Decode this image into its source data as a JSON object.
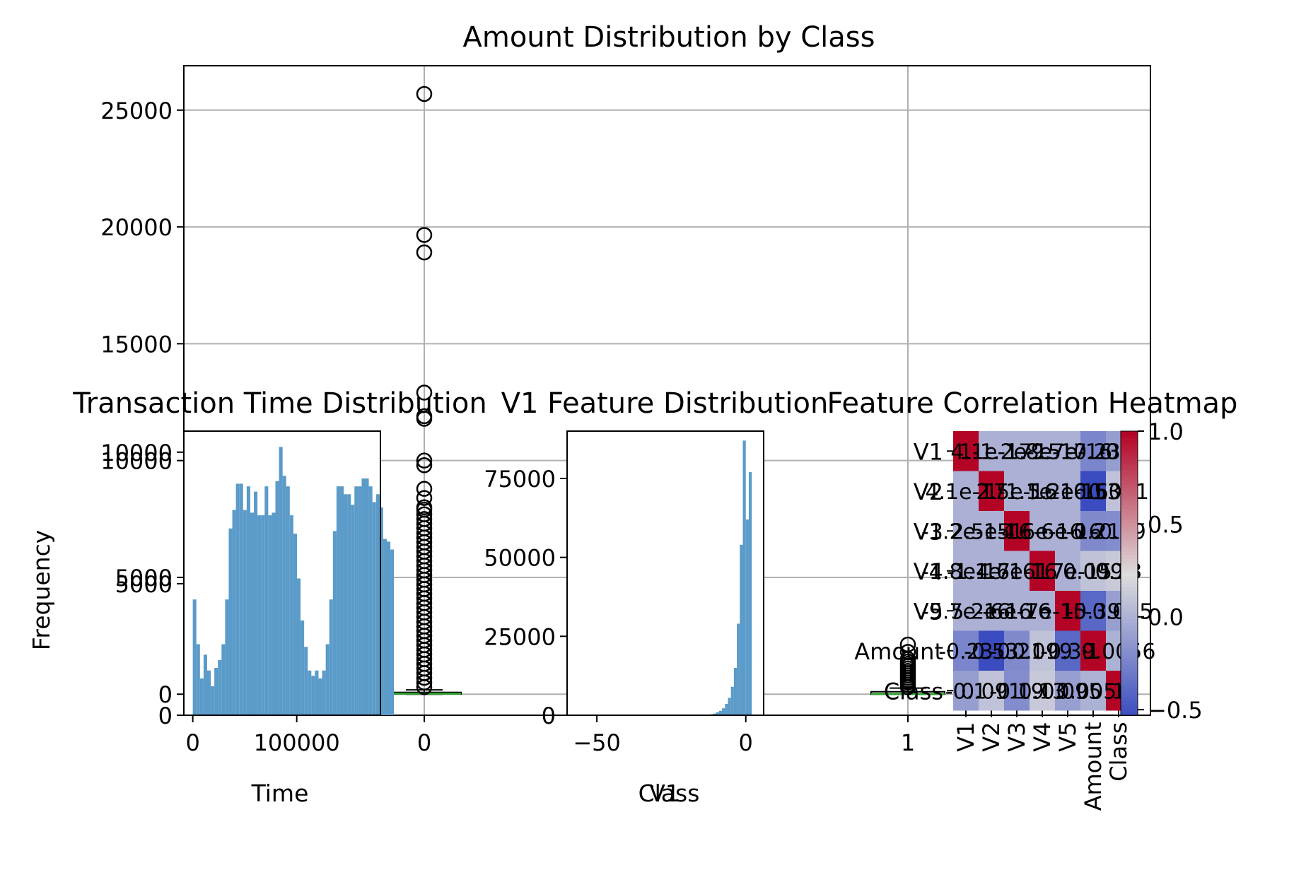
{
  "chart_data": [
    {
      "type": "box",
      "title": "Amount Distribution by Class",
      "xlabel": "Class",
      "ylabel": "",
      "categories": [
        "0",
        "1"
      ],
      "ylim": [
        -900,
        26900
      ],
      "yticks": [
        0,
        5000,
        10000,
        15000,
        20000,
        25000
      ],
      "grid": true,
      "boxes": [
        {
          "category": "0",
          "q1": 6,
          "median": 22,
          "q3": 77,
          "whisker_low": 0,
          "whisker_high": 185
        },
        {
          "category": "1",
          "q1": 1,
          "median": 9,
          "q3": 106,
          "whisker_low": 0,
          "whisker_high": 261
        }
      ],
      "outliers": [
        {
          "category": "0",
          "values": [
            25691,
            19656,
            18910,
            12910,
            11898,
            11790,
            10000,
            9800,
            8790,
            8400,
            8000,
            7900,
            7700,
            7500,
            7300,
            7100,
            6900,
            6700,
            6500,
            6300,
            6100,
            5900,
            5700,
            5500,
            5300,
            5100,
            4900,
            4700,
            4500,
            4300,
            4100,
            3900,
            3700,
            3500,
            3300,
            3100,
            2900,
            2700,
            2500,
            2300,
            2100,
            1900,
            1700,
            1500,
            1300,
            1100,
            900,
            700,
            500,
            300
          ]
        },
        {
          "category": "1",
          "values": [
            2126,
            1810,
            1500,
            1400,
            1300,
            1200,
            1100,
            1000,
            900,
            800,
            700,
            600,
            500,
            400,
            300
          ]
        }
      ]
    },
    {
      "type": "histogram",
      "title": "Transaction Time Distribution",
      "xlabel": "Time",
      "ylabel": "Frequency",
      "xticks": [
        0,
        100000
      ],
      "yticks": [
        0,
        5000,
        10000
      ],
      "xlim": [
        -8600,
        180500
      ],
      "ylim": [
        0,
        10800
      ],
      "bins": {
        "start": 0,
        "width": 3456,
        "values": [
          4400,
          2700,
          1400,
          2300,
          1700,
          1100,
          1800,
          2100,
          2700,
          4400,
          7100,
          7800,
          8800,
          8800,
          7800,
          8700,
          7700,
          8500,
          7600,
          7600,
          8700,
          7600,
          7700,
          8900,
          10200,
          9100,
          8700,
          7600,
          6900,
          5200,
          3600,
          2600,
          1700,
          1500,
          1700,
          1400,
          1700,
          2700,
          4400,
          7000,
          8700,
          8700,
          8400,
          8400,
          8000,
          8700,
          8700,
          9000,
          9000,
          8700,
          8100,
          8400,
          7900,
          6700,
          6600,
          6300
        ]
      }
    },
    {
      "type": "histogram",
      "title": "V1 Feature Distribution",
      "xlabel": "V1",
      "ylabel": "",
      "xticks": [
        -50,
        0
      ],
      "yticks": [
        0,
        25000,
        50000,
        75000
      ],
      "xlim": [
        -60,
        6
      ],
      "ylim": [
        0,
        90000
      ],
      "bins": {
        "start": -12,
        "width": 1,
        "values": [
          300,
          500,
          900,
          1400,
          2200,
          3600,
          5500,
          9000,
          15000,
          29000,
          54000,
          87000,
          62000,
          77000
        ]
      }
    },
    {
      "type": "heatmap",
      "title": "Feature Correlation Heatmap",
      "labels": [
        "V1",
        "V2",
        "V3",
        "V4",
        "V5",
        "Amount",
        "Class"
      ],
      "cell_text": [
        [
          "1",
          "4.1e-17",
          "-1.2e-15",
          "-1.8e-17",
          "-9.7e-16",
          "-0.23",
          "-0.1"
        ],
        [
          "4.1e-17",
          "1",
          "2.5e-16",
          "-1.1e-16",
          "5.2e-16",
          "-0.53",
          "0.091"
        ],
        [
          "-1.2e-15",
          "2.5e-16",
          "1",
          "4.6e-16",
          "-6e-16",
          "-0.21",
          "-0.19"
        ],
        [
          "-1.8e-17",
          "-1.1e-16",
          "4.6e-16",
          "1",
          "-1.7e-15",
          "0.099",
          "0.13"
        ],
        [
          "-9.7e-16",
          "5.2e-16",
          "-6e-16",
          "-1.7e-15",
          "1",
          "-0.39",
          "-0.095"
        ],
        [
          "-0.23",
          "-0.53",
          "-0.21",
          "0.099",
          "-0.39",
          "1",
          "0.0056"
        ],
        [
          "-0.1",
          "0.091",
          "-0.19",
          "0.13",
          "-0.095",
          "0.0056",
          "1"
        ]
      ],
      "values": [
        [
          1,
          0,
          0,
          0,
          0,
          -0.23,
          -0.1
        ],
        [
          0,
          1,
          0,
          0,
          0,
          -0.53,
          0.091
        ],
        [
          0,
          0,
          1,
          0,
          0,
          -0.21,
          -0.19
        ],
        [
          0,
          0,
          0,
          1,
          0,
          0.099,
          0.13
        ],
        [
          0,
          0,
          0,
          0,
          1,
          -0.39,
          -0.095
        ],
        [
          -0.23,
          -0.53,
          -0.21,
          0.099,
          -0.39,
          1,
          0.0056
        ],
        [
          -0.1,
          0.091,
          -0.19,
          0.13,
          -0.095,
          0.0056,
          1
        ]
      ],
      "colormap": "coolwarm",
      "vmin": -0.53,
      "vmax": 1,
      "colorbar_ticks": [
        "1.0",
        "0.5",
        "0.0",
        "−0.5"
      ],
      "colorbar_tick_values": [
        1.0,
        0.5,
        0.0,
        -0.5
      ]
    }
  ],
  "colors": {
    "hist": "#5b9bc9",
    "median": "#2ca02c",
    "grid": "#b0b0b0",
    "cold": "#3b4cc0",
    "neutral": "#dddddd",
    "warm": "#b40426"
  }
}
